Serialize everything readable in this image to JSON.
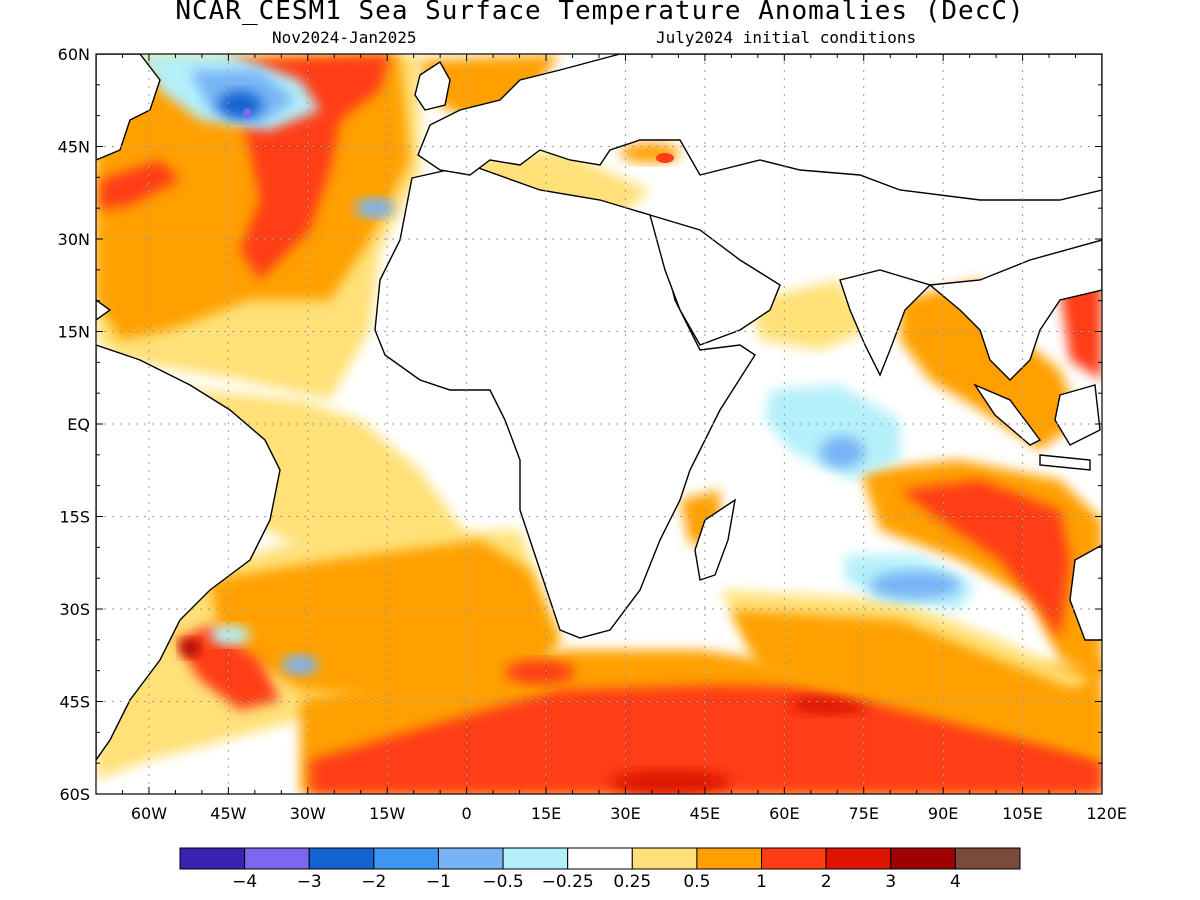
{
  "header": {
    "title": "NCAR_CESM1 Sea Surface Temperature Anomalies (DecC)",
    "period": "Nov2024-Jan2025",
    "init": "July2024 initial conditions"
  },
  "map": {
    "lat_labels": [
      "60N",
      "45N",
      "30N",
      "15N",
      "EQ",
      "15S",
      "30S",
      "45S",
      "60S"
    ],
    "lon_labels": [
      "60W",
      "45W",
      "30W",
      "15W",
      "0",
      "15E",
      "30E",
      "45E",
      "60E",
      "75E",
      "90E",
      "105E",
      "120E"
    ],
    "lon_range": [
      -70,
      120
    ],
    "lat_range": [
      -60,
      60
    ],
    "gridlines": true,
    "land_color": "#ffffff",
    "coastline_color": "#000000"
  },
  "colorbar": {
    "colors": [
      "#3a22b4",
      "#7b68ee",
      "#1563d2",
      "#3d97f0",
      "#78b4f5",
      "#b4f0fa",
      "#ffffff",
      "#ffe178",
      "#ffa000",
      "#ff3c14",
      "#dc1400",
      "#a00000",
      "#7a4a3a"
    ],
    "labels": [
      "−4",
      "−3",
      "−2",
      "−1",
      "−0.5",
      "−0.25",
      "0.25",
      "0.5",
      "1",
      "2",
      "3",
      "4"
    ]
  }
}
